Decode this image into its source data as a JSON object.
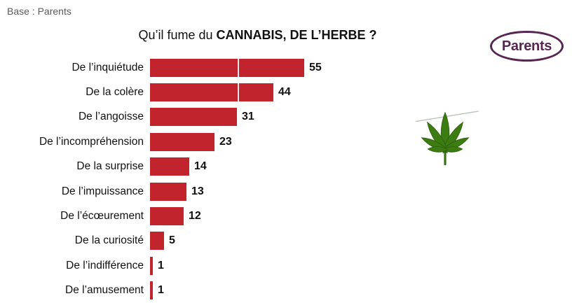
{
  "header": {
    "base_label": "Base : Parents",
    "title_normal": "Qu’il fume du ",
    "title_bold": "CANNABIS, DE L’HERBE ?",
    "logo_text": "Parents"
  },
  "colors": {
    "bar": "#c1242c",
    "logo": "#572652",
    "base_text": "#5a5a5a"
  },
  "chart_data": {
    "type": "bar",
    "orientation": "horizontal",
    "title": "Qu’il fume du CANNABIS, DE L’HERBE ?",
    "categories": [
      "De l’inquiétude",
      "De la colère",
      "De l’angoisse",
      "De l’incompréhension",
      "De la surprise",
      "De l’impuissance",
      "De l’écœurement",
      "De la curiosité",
      "De l’indifférence",
      "De l’amusement"
    ],
    "values": [
      55,
      44,
      31,
      23,
      14,
      13,
      12,
      5,
      1,
      1
    ],
    "xlim": [
      0,
      62.5
    ],
    "gridline_value": 31.25,
    "value_labels_shown": true,
    "legend": "none"
  }
}
